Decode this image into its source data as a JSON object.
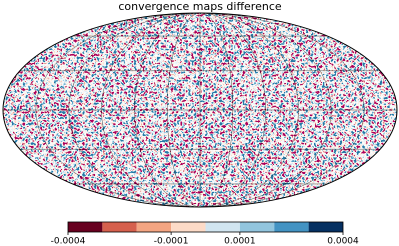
{
  "chart_data": {
    "type": "map",
    "title": "convergence maps difference",
    "projection": "mollweide",
    "colorbar": {
      "bounds": [
        -0.0004,
        -0.0003,
        -0.0002,
        -0.0001,
        0,
        0.0001,
        0.0002,
        0.0003,
        0.0004
      ],
      "colors": [
        "#67001f",
        "#d6604d",
        "#f4a582",
        "#fddbc7",
        "#d1e5f0",
        "#92c5de",
        "#4393c3",
        "#053061"
      ],
      "ticks": [
        -0.0004,
        -0.0001,
        0.0001,
        0.0004
      ]
    }
  }
}
